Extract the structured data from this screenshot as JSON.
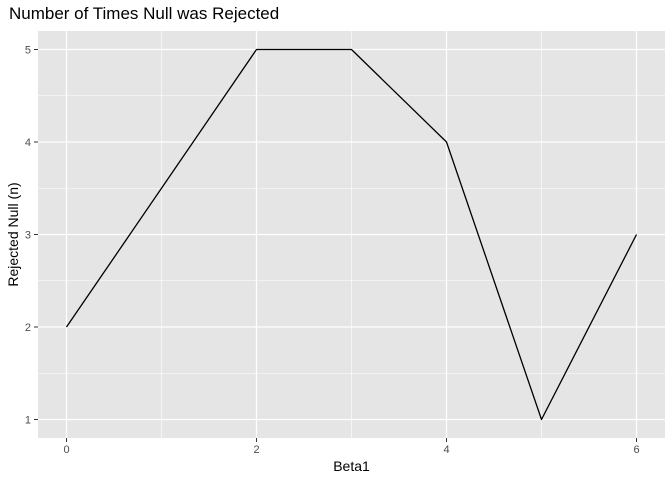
{
  "chart_data": {
    "type": "line",
    "title": "Number of Times Null was Rejected",
    "xlabel": "Beta1",
    "ylabel": "Rejected Null (n)",
    "x": [
      0,
      1,
      2,
      3,
      4,
      5,
      6
    ],
    "series": [
      {
        "values": [
          2,
          3.5,
          5,
          5,
          4,
          1,
          3
        ],
        "color": "#000000"
      }
    ],
    "xlim": [
      -0.3,
      6.3
    ],
    "ylim": [
      0.8,
      5.2
    ],
    "xticks": [
      0,
      2,
      4,
      6
    ],
    "xtick_labels": [
      "0",
      "2",
      "4",
      "6"
    ],
    "yticks": [
      1,
      2,
      3,
      4,
      5
    ],
    "ytick_labels": [
      "1",
      "2",
      "3",
      "4",
      "5"
    ],
    "grid": true,
    "panel_background": "#e5e5e5",
    "grid_color": "#ffffff",
    "axis_text_color": "#4d4d4d"
  }
}
